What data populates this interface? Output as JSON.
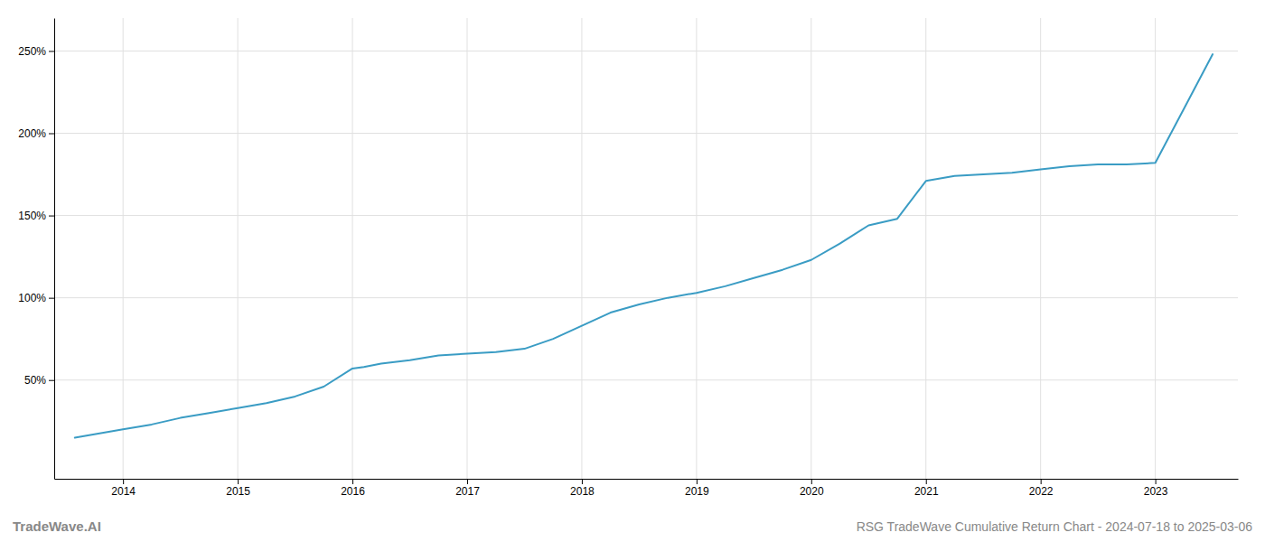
{
  "chart_data": {
    "type": "line",
    "title": "RSG TradeWave Cumulative Return Chart - 2024-07-18 to 2025-03-06",
    "annotations": [
      "TradeWave.AI"
    ],
    "x": [
      2013.58,
      2013.75,
      2014.0,
      2014.25,
      2014.5,
      2014.75,
      2015.0,
      2015.25,
      2015.5,
      2015.75,
      2016.0,
      2016.1,
      2016.25,
      2016.5,
      2016.75,
      2017.0,
      2017.25,
      2017.5,
      2017.75,
      2018.0,
      2018.25,
      2018.5,
      2018.75,
      2019.0,
      2019.25,
      2019.5,
      2019.75,
      2020.0,
      2020.25,
      2020.5,
      2020.75,
      2021.0,
      2021.25,
      2021.5,
      2021.75,
      2022.0,
      2022.25,
      2022.5,
      2022.75,
      2023.0,
      2023.25,
      2023.5
    ],
    "values": [
      15,
      17,
      20,
      23,
      27,
      30,
      33,
      36,
      40,
      46,
      57,
      58,
      60,
      62,
      65,
      66,
      67,
      69,
      75,
      83,
      91,
      96,
      100,
      103,
      107,
      112,
      117,
      123,
      133,
      144,
      148,
      171,
      174,
      175,
      176,
      178,
      180,
      181,
      181,
      182,
      215,
      248
    ],
    "color": "#3a9cc4",
    "xlim": [
      2013.4,
      2023.72
    ],
    "xticks": [
      2014,
      2015,
      2016,
      2017,
      2018,
      2019,
      2020,
      2021,
      2022,
      2023
    ],
    "ylim": [
      -10,
      270
    ],
    "yticks": [
      {
        "value": 50,
        "label": "50%"
      },
      {
        "value": 100,
        "label": "100%"
      },
      {
        "value": 150,
        "label": "150%"
      },
      {
        "value": 200,
        "label": "200%"
      },
      {
        "value": 250,
        "label": "250%"
      }
    ],
    "grid": true
  }
}
